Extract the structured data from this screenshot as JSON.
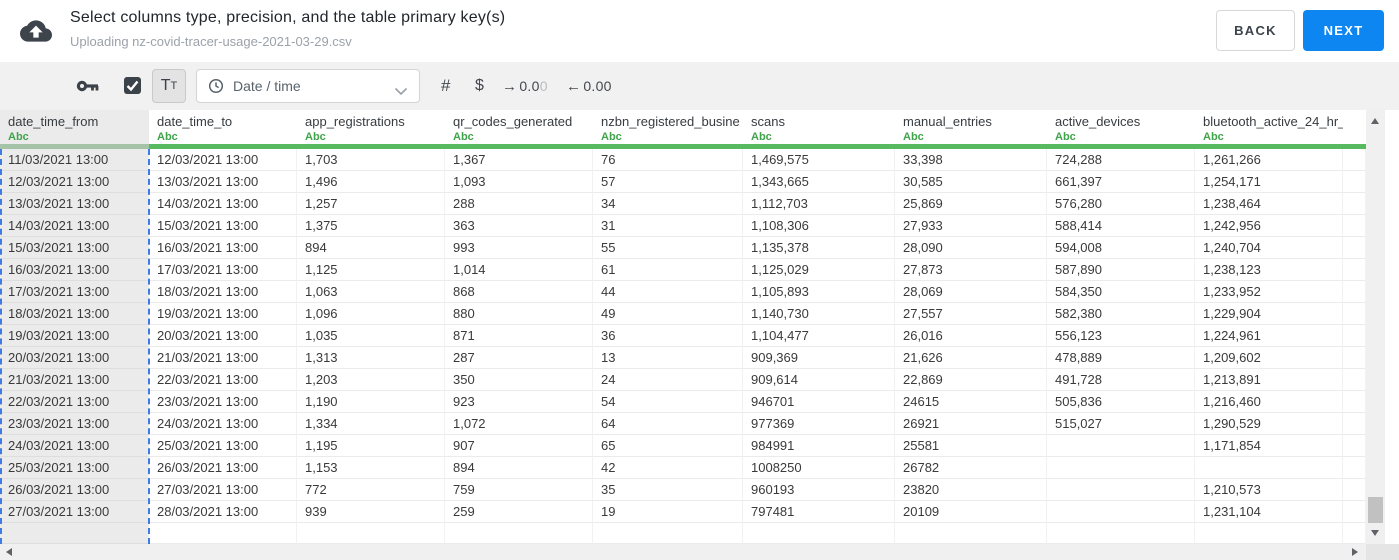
{
  "header": {
    "title": "Select columns type, precision, and the table primary key(s)",
    "subtitle": "Uploading nz-covid-tracer-usage-2021-03-29.csv",
    "back_label": "BACK",
    "next_label": "NEXT"
  },
  "toolbar": {
    "text_type_button": {
      "large": "T",
      "small": "T"
    },
    "type_dropdown_value": "Date / time",
    "number_symbol": "#",
    "currency_symbol": "$",
    "increase_decimal": {
      "arrow": "→",
      "value_dark": "0.0",
      "value_light": "0"
    },
    "decrease_decimal": {
      "arrow": "←",
      "value": "0.00"
    }
  },
  "colors": {
    "accent_blue": "#0d86f1",
    "selection_blue": "#3f7ae5",
    "header_underline_green": "#57b960",
    "type_label_green": "#3fa44a"
  },
  "table": {
    "columns": [
      {
        "name": "date_time_from",
        "type_label": "Abc",
        "selected": true
      },
      {
        "name": "date_time_to",
        "type_label": "Abc",
        "selected": false
      },
      {
        "name": "app_registrations",
        "type_label": "Abc",
        "selected": false
      },
      {
        "name": "qr_codes_generated",
        "type_label": "Abc",
        "selected": false
      },
      {
        "name": "nzbn_registered_busine",
        "type_label": "Abc",
        "selected": false
      },
      {
        "name": "scans",
        "type_label": "Abc",
        "selected": false
      },
      {
        "name": "manual_entries",
        "type_label": "Abc",
        "selected": false
      },
      {
        "name": "active_devices",
        "type_label": "Abc",
        "selected": false
      },
      {
        "name": "bluetooth_active_24_hr_",
        "type_label": "Abc",
        "selected": false
      }
    ],
    "rows": [
      [
        "11/03/2021 13:00",
        "12/03/2021 13:00",
        "1,703",
        "1,367",
        "76",
        "1,469,575",
        "33,398",
        "724,288",
        "1,261,266"
      ],
      [
        "12/03/2021 13:00",
        "13/03/2021 13:00",
        "1,496",
        "1,093",
        "57",
        "1,343,665",
        "30,585",
        "661,397",
        "1,254,171"
      ],
      [
        "13/03/2021 13:00",
        "14/03/2021 13:00",
        "1,257",
        "288",
        "34",
        "1,112,703",
        "25,869",
        "576,280",
        "1,238,464"
      ],
      [
        "14/03/2021 13:00",
        "15/03/2021 13:00",
        "1,375",
        "363",
        "31",
        "1,108,306",
        "27,933",
        "588,414",
        "1,242,956"
      ],
      [
        "15/03/2021 13:00",
        "16/03/2021 13:00",
        "894",
        "993",
        "55",
        "1,135,378",
        "28,090",
        "594,008",
        "1,240,704"
      ],
      [
        "16/03/2021 13:00",
        "17/03/2021 13:00",
        "1,125",
        "1,014",
        "61",
        "1,125,029",
        "27,873",
        "587,890",
        "1,238,123"
      ],
      [
        "17/03/2021 13:00",
        "18/03/2021 13:00",
        "1,063",
        "868",
        "44",
        "1,105,893",
        "28,069",
        "584,350",
        "1,233,952"
      ],
      [
        "18/03/2021 13:00",
        "19/03/2021 13:00",
        "1,096",
        "880",
        "49",
        "1,140,730",
        "27,557",
        "582,380",
        "1,229,904"
      ],
      [
        "19/03/2021 13:00",
        "20/03/2021 13:00",
        "1,035",
        "871",
        "36",
        "1,104,477",
        "26,016",
        "556,123",
        "1,224,961"
      ],
      [
        "20/03/2021 13:00",
        "21/03/2021 13:00",
        "1,313",
        "287",
        "13",
        "909,369",
        "21,626",
        "478,889",
        "1,209,602"
      ],
      [
        "21/03/2021 13:00",
        "22/03/2021 13:00",
        "1,203",
        "350",
        "24",
        "909,614",
        "22,869",
        "491,728",
        "1,213,891"
      ],
      [
        "22/03/2021 13:00",
        "23/03/2021 13:00",
        "1,190",
        "923",
        "54",
        "946701",
        "24615",
        "505,836",
        "1,216,460"
      ],
      [
        "23/03/2021 13:00",
        "24/03/2021 13:00",
        "1,334",
        "1,072",
        "64",
        "977369",
        "26921",
        "515,027",
        "1,290,529"
      ],
      [
        "24/03/2021 13:00",
        "25/03/2021 13:00",
        "1,195",
        "907",
        "65",
        "984991",
        "25581",
        "",
        "1,171,854"
      ],
      [
        "25/03/2021 13:00",
        "26/03/2021 13:00",
        "1,153",
        "894",
        "42",
        "1008250",
        "26782",
        "",
        ""
      ],
      [
        "26/03/2021 13:00",
        "27/03/2021 13:00",
        "772",
        "759",
        "35",
        "960193",
        "23820",
        "",
        "1,210,573"
      ],
      [
        "27/03/2021 13:00",
        "28/03/2021 13:00",
        "939",
        "259",
        "19",
        "797481",
        "20109",
        "",
        "1,231,104"
      ]
    ]
  }
}
